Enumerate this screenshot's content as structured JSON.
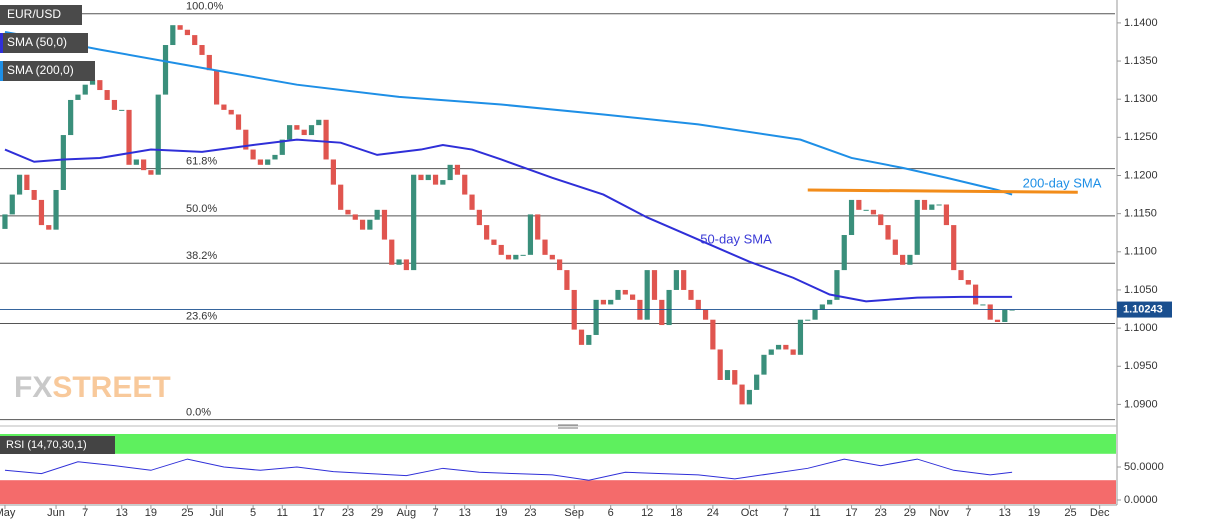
{
  "chart_data": {
    "type": "candlestick",
    "symbol": "EUR/USD",
    "indicator_labels": [
      "SMA (50,0)",
      "SMA (200,0)"
    ],
    "watermark": [
      "FX",
      "STREET"
    ],
    "up_color": "#3a8f7b",
    "down_color": "#e0554f",
    "xlim": [
      -0.68,
      152.1
    ],
    "ylim": [
      1.0873,
      1.143
    ],
    "xticks": [
      {
        "value": 0,
        "label": "May"
      },
      {
        "value": 7,
        "label": "Jun"
      },
      {
        "value": 11,
        "label": "7"
      },
      {
        "value": 16,
        "label": "13"
      },
      {
        "value": 20,
        "label": "19"
      },
      {
        "value": 25,
        "label": "25"
      },
      {
        "value": 29,
        "label": "Jul"
      },
      {
        "value": 34,
        "label": "5"
      },
      {
        "value": 38,
        "label": "11"
      },
      {
        "value": 43,
        "label": "17"
      },
      {
        "value": 47,
        "label": "23"
      },
      {
        "value": 51,
        "label": "29"
      },
      {
        "value": 55,
        "label": "Aug"
      },
      {
        "value": 59,
        "label": "7"
      },
      {
        "value": 63,
        "label": "13"
      },
      {
        "value": 68,
        "label": "19"
      },
      {
        "value": 72,
        "label": "23"
      },
      {
        "value": 78,
        "label": "Sep"
      },
      {
        "value": 83,
        "label": "6"
      },
      {
        "value": 88,
        "label": "12"
      },
      {
        "value": 92,
        "label": "18"
      },
      {
        "value": 97,
        "label": "24"
      },
      {
        "value": 102,
        "label": "Oct"
      },
      {
        "value": 107,
        "label": "7"
      },
      {
        "value": 111,
        "label": "11"
      },
      {
        "value": 116,
        "label": "17"
      },
      {
        "value": 120,
        "label": "23"
      },
      {
        "value": 124,
        "label": "29"
      },
      {
        "value": 128,
        "label": "Nov"
      },
      {
        "value": 132,
        "label": "7"
      },
      {
        "value": 137,
        "label": "13"
      },
      {
        "value": 141,
        "label": "19"
      },
      {
        "value": 146,
        "label": "25"
      },
      {
        "value": 150,
        "label": "Dec"
      }
    ],
    "yticks": [
      {
        "value": 1.14,
        "label": "1.1400"
      },
      {
        "value": 1.135,
        "label": "1.1350"
      },
      {
        "value": 1.13,
        "label": "1.1300"
      },
      {
        "value": 1.125,
        "label": "1.1250"
      },
      {
        "value": 1.12,
        "label": "1.1200"
      },
      {
        "value": 1.115,
        "label": "1.1150"
      },
      {
        "value": 1.11,
        "label": "1.1100"
      },
      {
        "value": 1.105,
        "label": "1.1050"
      },
      {
        "value": 1.1,
        "label": "1.1000"
      },
      {
        "value": 1.095,
        "label": "1.0950"
      },
      {
        "value": 1.09,
        "label": "1.0900"
      }
    ],
    "open": [
      1.113,
      1.1149,
      1.1175,
      1.1201,
      1.1181,
      1.1168,
      1.1135,
      1.1129,
      1.1181,
      1.1253,
      1.1299,
      1.1306,
      1.1319,
      1.1325,
      1.1312,
      1.1299,
      1.1286,
      1.1286,
      1.1214,
      1.1221,
      1.1207,
      1.1201,
      1.1306,
      1.1371,
      1.1397,
      1.1391,
      1.1384,
      1.1371,
      1.1358,
      1.1338,
      1.1293,
      1.1286,
      1.128,
      1.126,
      1.1234,
      1.1221,
      1.1214,
      1.1221,
      1.1227,
      1.1247,
      1.1266,
      1.126,
      1.1253,
      1.1266,
      1.1273,
      1.1221,
      1.1188,
      1.1155,
      1.1149,
      1.1142,
      1.1129,
      1.1142,
      1.1155,
      1.1116,
      1.1083,
      1.109,
      1.1076,
      1.1201,
      1.1194,
      1.1201,
      1.1188,
      1.1194,
      1.1214,
      1.1201,
      1.1175,
      1.1155,
      1.1135,
      1.1116,
      1.1109,
      1.1096,
      1.109,
      1.1096,
      1.1096,
      1.1149,
      1.1116,
      1.1096,
      1.109,
      1.1076,
      1.105,
      1.0998,
      1.0978,
      1.0991,
      1.1037,
      1.1031,
      1.1037,
      1.105,
      1.1044,
      1.1037,
      1.1011,
      1.1076,
      1.1037,
      1.1004,
      1.105,
      1.1076,
      1.105,
      1.1037,
      1.1024,
      1.1011,
      1.0972,
      1.0932,
      1.0945,
      1.0926,
      1.09,
      1.0919,
      1.0939,
      1.0965,
      1.0972,
      1.0978,
      1.0972,
      1.0965,
      1.1011,
      1.1011,
      1.1024,
      1.1031,
      1.1037,
      1.1076,
      1.1122,
      1.1168,
      1.1155,
      1.1155,
      1.1149,
      1.1135,
      1.1116,
      1.1096,
      1.1083,
      1.1096,
      1.1168,
      1.1155,
      1.1162,
      1.1162,
      1.1135,
      1.1076,
      1.1063,
      1.1057,
      1.1031,
      1.1031,
      1.1011,
      1.1008,
      1.1024
    ],
    "close": [
      1.1149,
      1.1175,
      1.1201,
      1.1181,
      1.1168,
      1.1135,
      1.1129,
      1.1181,
      1.1253,
      1.1299,
      1.1306,
      1.1319,
      1.1325,
      1.1312,
      1.1299,
      1.1286,
      1.1286,
      1.1214,
      1.1221,
      1.1207,
      1.1201,
      1.1306,
      1.1371,
      1.1397,
      1.1391,
      1.1384,
      1.1371,
      1.1358,
      1.1338,
      1.1293,
      1.1286,
      1.128,
      1.126,
      1.1234,
      1.1221,
      1.1214,
      1.1221,
      1.1227,
      1.1247,
      1.1266,
      1.126,
      1.1253,
      1.1266,
      1.1273,
      1.1221,
      1.1188,
      1.1155,
      1.1149,
      1.1142,
      1.1129,
      1.1142,
      1.1155,
      1.1116,
      1.1083,
      1.109,
      1.1076,
      1.1201,
      1.1194,
      1.1201,
      1.1188,
      1.1194,
      1.1214,
      1.1201,
      1.1175,
      1.1155,
      1.1135,
      1.1116,
      1.1109,
      1.1096,
      1.109,
      1.1096,
      1.1096,
      1.1149,
      1.1116,
      1.1096,
      1.109,
      1.1076,
      1.105,
      1.0998,
      1.0978,
      1.0991,
      1.1037,
      1.1031,
      1.1037,
      1.105,
      1.1044,
      1.1037,
      1.1011,
      1.1076,
      1.1037,
      1.1004,
      1.105,
      1.1076,
      1.105,
      1.1037,
      1.1024,
      1.1011,
      1.0972,
      1.0932,
      1.0945,
      1.0926,
      1.09,
      1.0919,
      1.0939,
      1.0965,
      1.0972,
      1.0978,
      1.0972,
      1.0965,
      1.1011,
      1.1011,
      1.1024,
      1.1031,
      1.1037,
      1.1076,
      1.1122,
      1.1168,
      1.1155,
      1.1155,
      1.1149,
      1.1135,
      1.1116,
      1.1096,
      1.1083,
      1.1096,
      1.1168,
      1.1155,
      1.1162,
      1.1162,
      1.1135,
      1.1076,
      1.1063,
      1.1057,
      1.1031,
      1.1031,
      1.1011,
      1.1008,
      1.1024,
      1.10243
    ],
    "last_price": 1.10243,
    "series": [
      {
        "name": "50-day SMA",
        "color": "#2f2fd8",
        "x": [
          0,
          4,
          8,
          13,
          20,
          27,
          34,
          40,
          46,
          51,
          57,
          60,
          64,
          68,
          75,
          82,
          88,
          95,
          102,
          108,
          113,
          118,
          125,
          131,
          138
        ],
        "values": [
          1.1234,
          1.1218,
          1.1221,
          1.1223,
          1.1234,
          1.1231,
          1.124,
          1.1247,
          1.1243,
          1.1227,
          1.1234,
          1.124,
          1.1234,
          1.1221,
          1.1197,
          1.1175,
          1.1145,
          1.1116,
          1.1087,
          1.1066,
          1.1044,
          1.1035,
          1.104,
          1.1041,
          1.1041
        ]
      },
      {
        "name": "200-day SMA",
        "color": "#1e8fe6",
        "x": [
          0,
          6,
          13,
          27,
          40,
          54,
          68,
          82,
          95,
          109,
          116,
          123,
          129,
          136,
          138
        ],
        "values": [
          1.1388,
          1.1378,
          1.1365,
          1.1341,
          1.1319,
          1.1303,
          1.1293,
          1.128,
          1.1267,
          1.1247,
          1.1223,
          1.121,
          1.1197,
          1.1181,
          1.1175
        ]
      }
    ],
    "resistance": {
      "color": "#f28c1a",
      "x": [
        110,
        147
      ],
      "values": [
        1.1181,
        1.1178
      ]
    },
    "fibonacci": {
      "labels": [
        "100.0%",
        "61.8%",
        "50.0%",
        "38.2%",
        "23.6%",
        "0.0%"
      ],
      "values": [
        1.1412,
        1.1209,
        1.1147,
        1.1085,
        1.1006,
        1.088
      ]
    },
    "rsi": {
      "label": "RSI (14,70,30,1)",
      "ylim": [
        0,
        100
      ],
      "yticks": [
        {
          "value": 50,
          "label": "50.0000"
        },
        {
          "value": 0,
          "label": "0.0000"
        }
      ],
      "overbought": 70,
      "oversold": 30,
      "color": "#2f2fd8",
      "x": [
        0,
        5,
        10,
        15,
        20,
        25,
        30,
        35,
        40,
        45,
        50,
        55,
        60,
        65,
        70,
        75,
        80,
        85,
        90,
        95,
        100,
        105,
        110,
        115,
        120,
        125,
        130,
        135,
        138
      ],
      "values": [
        45,
        40,
        58,
        52,
        45,
        62,
        50,
        45,
        50,
        43,
        40,
        37,
        48,
        42,
        40,
        38,
        30,
        42,
        40,
        38,
        32,
        40,
        48,
        62,
        52,
        62,
        45,
        38,
        42
      ]
    }
  }
}
